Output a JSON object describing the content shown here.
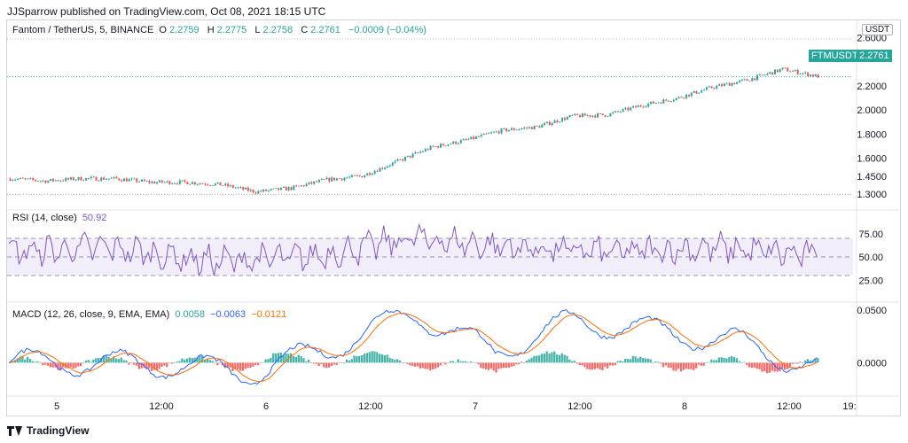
{
  "header": {
    "published": "JJSparrow published on TradingView.com, Oct 08, 2021 18:15 UTC"
  },
  "main_legend": {
    "symbol": "Fantom / TetherUS, 5, BINANCE",
    "o_label": "O",
    "o_value": "2.2759",
    "h_label": "H",
    "h_value": "2.2775",
    "l_label": "L",
    "l_value": "2.2758",
    "c_label": "C",
    "c_value": "2.2761",
    "change": "−0.0009 (−0.04%)"
  },
  "price_axis": {
    "currency": "USDT",
    "ticks": [
      "2.6000",
      "2.2000",
      "2.0000",
      "1.8000",
      "1.6000",
      "1.4500",
      "1.3000"
    ]
  },
  "price_badge": {
    "ticker": "FTMUSDT",
    "value": "2.2761"
  },
  "rsi": {
    "title": "RSI (14, close)",
    "value": "50.92",
    "ticks": [
      "75.00",
      "50.00",
      "25.00"
    ]
  },
  "macd": {
    "title": "MACD (12, 26, close, 9, EMA, EMA)",
    "v1": "0.0058",
    "v2": "−0.0063",
    "v3": "−0.0121",
    "ticks": [
      "0.0500",
      "0.0000"
    ]
  },
  "time_axis": [
    "5",
    "12:00",
    "6",
    "12:00",
    "7",
    "12:00",
    "8",
    "12:00",
    "19:"
  ],
  "footer": {
    "brand": "TradingView"
  },
  "colors": {
    "up": "#26a69a",
    "down": "#ef5350",
    "rsi": "#7e57c2",
    "macd": "#2962ff",
    "signal": "#ff6d00",
    "badge": "#26a69a"
  },
  "chart_data": [
    {
      "type": "line",
      "title": "Fantom / TetherUS, 5, BINANCE",
      "ylim": [
        1.25,
        2.62
      ],
      "x": [
        "5 00:00",
        "5 06:00",
        "5 12:00",
        "5 18:00",
        "6 00:00",
        "6 06:00",
        "6 09:00",
        "6 12:00",
        "6 15:00",
        "6 18:00",
        "7 00:00",
        "7 03:00",
        "7 06:00",
        "7 09:00",
        "7 12:00",
        "7 15:00",
        "7 18:00",
        "8 00:00",
        "8 03:00",
        "8 06:00",
        "8 09:00",
        "8 12:00",
        "8 15:00",
        "8 18:00"
      ],
      "series": [
        {
          "values": [
            1.43,
            1.41,
            1.43,
            1.43,
            1.4,
            1.4,
            1.38,
            1.32,
            1.35,
            1.42,
            1.45,
            1.57,
            1.69,
            1.75,
            1.83,
            1.86,
            1.95,
            1.96,
            2.04,
            2.1,
            2.19,
            2.25,
            2.34,
            2.28
          ]
        }
      ]
    },
    {
      "type": "line",
      "title": "RSI (14, close)",
      "ylim": [
        10,
        90
      ],
      "x": [
        "5 00:00",
        "5 12:00",
        "6 00:00",
        "6 12:00",
        "7 00:00",
        "7 12:00",
        "8 00:00",
        "8 12:00",
        "8 18:00"
      ],
      "series": [
        {
          "values": [
            55,
            60,
            45,
            50,
            70,
            60,
            55,
            60,
            50.92
          ]
        }
      ]
    },
    {
      "type": "line",
      "title": "MACD (12, 26, close, 9, EMA, EMA)",
      "ylim": [
        -0.03,
        0.055
      ],
      "x": [
        "5 00:00",
        "5 12:00",
        "6 00:00",
        "6 12:00",
        "7 00:00",
        "7 06:00",
        "7 12:00",
        "8 00:00",
        "8 06:00",
        "8 12:00",
        "8 18:00"
      ],
      "series": [
        {
          "values": [
            0.001,
            0.0,
            -0.002,
            -0.01,
            0.015,
            0.048,
            0.01,
            0.04,
            0.03,
            0.02,
            -0.0063
          ]
        }
      ]
    }
  ]
}
